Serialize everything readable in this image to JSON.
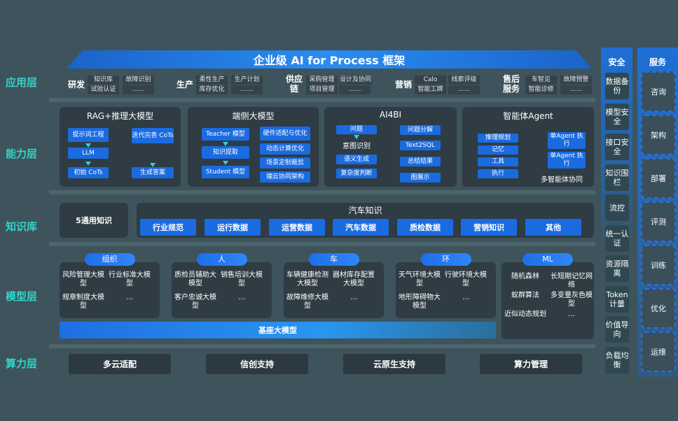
{
  "title": "企业级 AI for Process 框架",
  "layers": [
    "应用层",
    "能力层",
    "知识库",
    "模型层",
    "算力层"
  ],
  "app": [
    {
      "name": "研发",
      "cells": [
        [
          "知识库",
          "试验认证"
        ],
        [
          "故障识别",
          "……"
        ]
      ]
    },
    {
      "name": "生产",
      "cells": [
        [
          "柔性生产",
          "库存优化"
        ],
        [
          "生产计划",
          "……"
        ]
      ]
    },
    {
      "name": "供应链",
      "cells": [
        [
          "采购管理",
          "项目管理"
        ],
        [
          "设计及协同",
          "……"
        ]
      ]
    },
    {
      "name": "营销",
      "cells": [
        [
          "Calo",
          "智能工牌"
        ],
        [
          "线索评级",
          "……"
        ]
      ]
    },
    {
      "name": "售后服务",
      "cells": [
        [
          "车智见",
          "智能诊修"
        ],
        [
          "故障预警",
          "……"
        ]
      ]
    }
  ],
  "capability": {
    "rag": {
      "title": "RAG+推理大模型",
      "steps": [
        "提示词工程",
        "LLM",
        "初始 CoTs",
        "迭代完善 CoTs",
        "生成答案"
      ]
    },
    "edge": {
      "title": "端侧大模型",
      "left": [
        "Teacher 模型",
        "知识提取",
        "Student 模型"
      ],
      "right": [
        "硬件适配与优化",
        "动态计算优化",
        "场景定制裁剪",
        "端云协同架构"
      ]
    },
    "ai4bi": {
      "title": "AI4BI",
      "left": [
        "问题",
        "意图识别",
        "语义生成",
        "复杂度判断"
      ],
      "right": [
        "问题分解",
        "Text2SQL",
        "总结结果",
        "图展示"
      ]
    },
    "agent": {
      "title": "智能体Agent",
      "left": [
        "推理规划",
        "记忆",
        "工具",
        "执行"
      ],
      "right": [
        "单Agent 执行",
        "单Agent 执行"
      ],
      "caption": "多智能体协同"
    }
  },
  "knowledge": {
    "general": "5通用知识",
    "auto_title": "汽车知识",
    "items": [
      "行业规范",
      "运行数据",
      "运营数据",
      "汽车数据",
      "质检数据",
      "营销知识",
      "其他"
    ]
  },
  "models": [
    {
      "tag": "组织",
      "items": [
        "风险管理大模型",
        "行业标准大模型",
        "规章制度大模型",
        "…"
      ]
    },
    {
      "tag": "人",
      "items": [
        "质检员辅助大模型",
        "销售培训大模型",
        "客户忠诚大模型",
        "…"
      ]
    },
    {
      "tag": "车",
      "items": [
        "车辆健康检测大模型",
        "器材库存配置大模型",
        "故障维修大模型",
        "…"
      ]
    },
    {
      "tag": "环",
      "items": [
        "天气环境大模型",
        "行驶环境大模型",
        "地形障碍物大模型",
        "…"
      ]
    },
    {
      "tag": "ML",
      "items": [
        "随机森林",
        "长短期记忆网络",
        "蚁群算法",
        "多变量灰色模型",
        "近似动态规划",
        "…"
      ]
    }
  ],
  "base_model": "基座大模型",
  "compute": [
    "多云适配",
    "信创支持",
    "云原生支持",
    "算力管理"
  ],
  "security": {
    "title": "安全",
    "items": [
      "数据备份",
      "模型安全",
      "接口安全",
      "知识围栏",
      "流控",
      "统一认证",
      "资源隔离",
      "Token计量",
      "价值导向",
      "负载均衡"
    ]
  },
  "service": {
    "title": "服务",
    "items": [
      "咨询",
      "架构",
      "部署",
      "评测",
      "训练",
      "优化",
      "运维"
    ]
  }
}
